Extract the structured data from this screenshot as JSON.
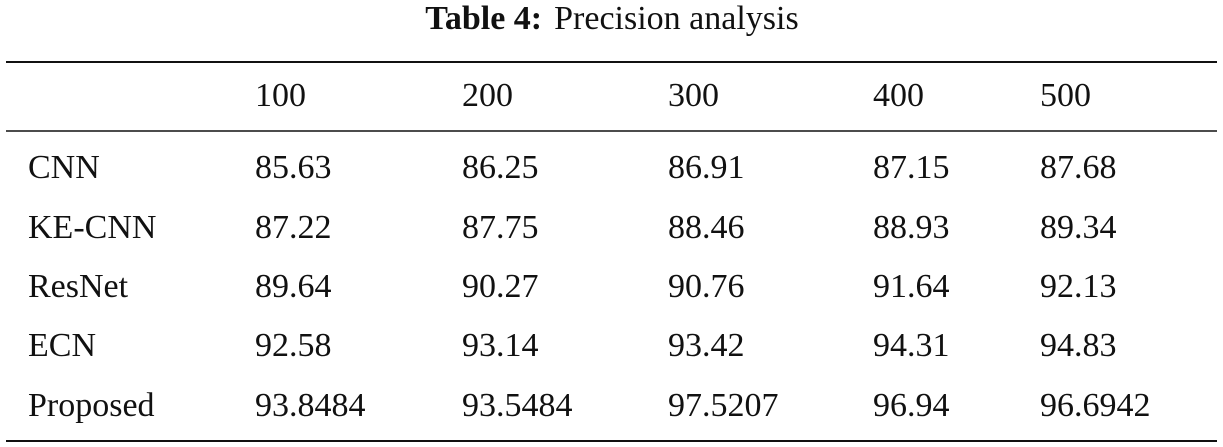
{
  "caption": {
    "label": "Table 4:",
    "text": "Precision analysis"
  },
  "table": {
    "header": [
      "100",
      "200",
      "300",
      "400",
      "500"
    ],
    "rows": [
      [
        "CNN",
        "85.63",
        "86.25",
        "86.91",
        "87.15",
        "87.68"
      ],
      [
        "KE-CNN",
        "87.22",
        "87.75",
        "88.46",
        "88.93",
        "89.34"
      ],
      [
        "ResNet",
        "89.64",
        "90.27",
        "90.76",
        "91.64",
        "92.13"
      ],
      [
        "ECN",
        "92.58",
        "93.14",
        "93.42",
        "94.31",
        "94.83"
      ],
      [
        "Proposed",
        "93.8484",
        "93.5484",
        "97.5207",
        "96.94",
        "96.6942"
      ]
    ]
  }
}
